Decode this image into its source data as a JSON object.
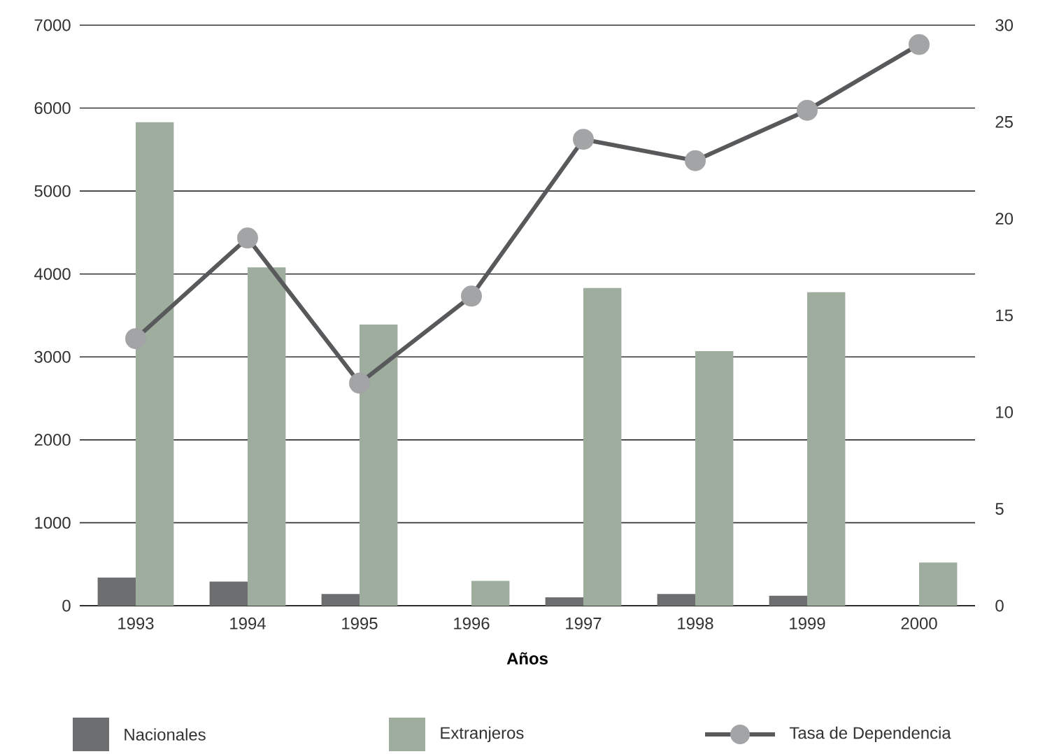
{
  "chart_data": {
    "type": "bar",
    "xlabel": "Años",
    "categories": [
      "1993",
      "1994",
      "1995",
      "1996",
      "1997",
      "1998",
      "1999",
      "2000"
    ],
    "series": [
      {
        "name": "Nacionales",
        "color": "#6d6e70",
        "values": [
          340,
          290,
          140,
          0,
          100,
          140,
          120,
          0
        ]
      },
      {
        "name": "Extranjeros",
        "color": "#9fad9f",
        "values": [
          5830,
          4080,
          3390,
          300,
          3830,
          3070,
          3780,
          520
        ]
      },
      {
        "name": "Tasa de Dependencia",
        "type": "line",
        "axis": "y2",
        "color": "#58595b",
        "marker": "circle",
        "values": [
          13.8,
          19.0,
          11.5,
          16.0,
          24.1,
          23.0,
          25.6,
          29.0
        ]
      }
    ],
    "ylim": [
      0,
      7000
    ],
    "yticks": [
      0,
      1000,
      2000,
      3000,
      4000,
      5000,
      6000,
      7000
    ],
    "y2lim": [
      0,
      30
    ],
    "y2ticks": [
      0,
      5,
      10,
      15,
      20,
      25,
      30
    ],
    "grid": "y",
    "legend": "bottom"
  }
}
